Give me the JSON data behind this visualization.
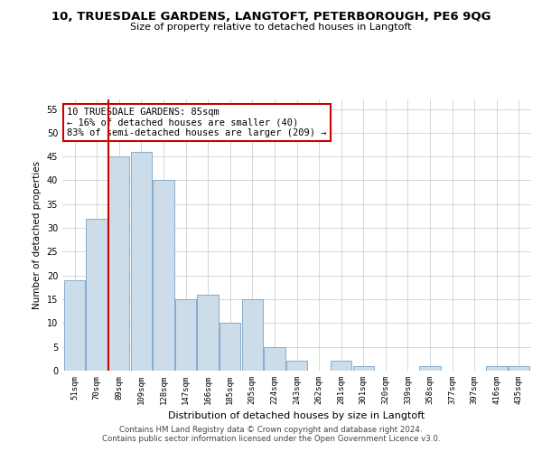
{
  "title": "10, TRUESDALE GARDENS, LANGTOFT, PETERBOROUGH, PE6 9QG",
  "subtitle": "Size of property relative to detached houses in Langtoft",
  "xlabel": "Distribution of detached houses by size in Langtoft",
  "ylabel": "Number of detached properties",
  "bar_labels": [
    "51sqm",
    "70sqm",
    "89sqm",
    "109sqm",
    "128sqm",
    "147sqm",
    "166sqm",
    "185sqm",
    "205sqm",
    "224sqm",
    "243sqm",
    "262sqm",
    "281sqm",
    "301sqm",
    "320sqm",
    "339sqm",
    "358sqm",
    "377sqm",
    "397sqm",
    "416sqm",
    "435sqm"
  ],
  "bar_values": [
    19,
    32,
    45,
    46,
    40,
    15,
    16,
    10,
    15,
    5,
    2,
    0,
    2,
    1,
    0,
    0,
    1,
    0,
    0,
    1,
    1
  ],
  "bar_color": "#ccdce8",
  "bar_edge_color": "#88aacc",
  "vline_x": 2,
  "vline_color": "#cc0000",
  "ylim": [
    0,
    57
  ],
  "yticks": [
    0,
    5,
    10,
    15,
    20,
    25,
    30,
    35,
    40,
    45,
    50,
    55
  ],
  "annotation_text": "10 TRUESDALE GARDENS: 85sqm\n← 16% of detached houses are smaller (40)\n83% of semi-detached houses are larger (209) →",
  "annotation_box_color": "#ffffff",
  "annotation_box_edge": "#cc0000",
  "footer_line1": "Contains HM Land Registry data © Crown copyright and database right 2024.",
  "footer_line2": "Contains public sector information licensed under the Open Government Licence v3.0.",
  "background_color": "#ffffff",
  "grid_color": "#c8d0d8"
}
